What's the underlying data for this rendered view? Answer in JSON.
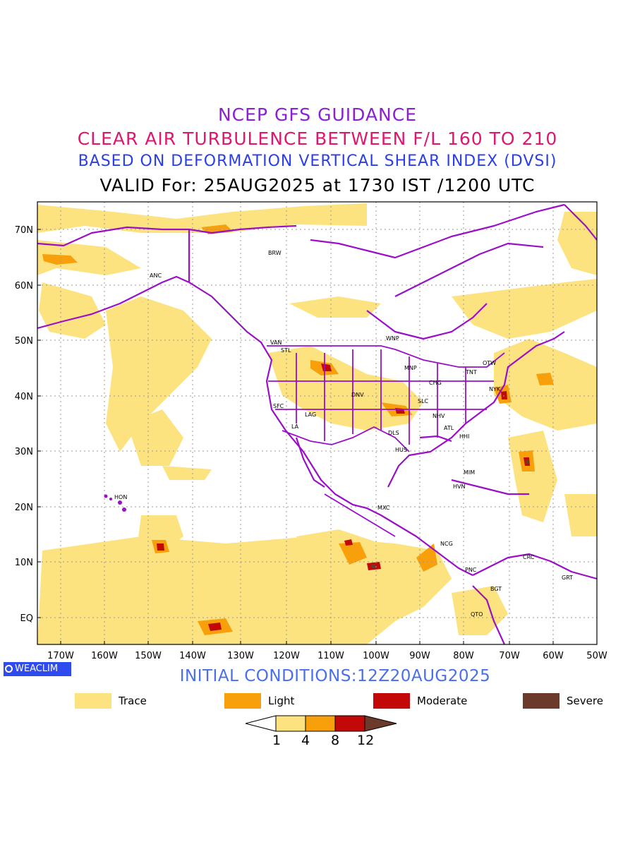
{
  "header": {
    "title": "NCEP GFS GUIDANCE",
    "subtitle": "CLEAR AIR TURBULENCE BETWEEN F/L 160 TO 210",
    "basis": "BASED ON DEFORMATION VERTICAL SHEAR INDEX (DVSI)",
    "valid": "VALID For: 25AUG2025 at 1730 IST /1200 UTC"
  },
  "map": {
    "lat_labels": [
      "70N",
      "60N",
      "50N",
      "40N",
      "30N",
      "20N",
      "10N",
      "EQ"
    ],
    "lon_labels": [
      "170W",
      "160W",
      "150W",
      "140W",
      "130W",
      "120W",
      "110W",
      "100W",
      "90W",
      "80W",
      "70W",
      "60W",
      "50W"
    ],
    "stations": [
      "BRW",
      "ANC",
      "VAN",
      "STL",
      "WNP",
      "MNP",
      "OTW",
      "TNT",
      "NYK",
      "CHG",
      "SLC",
      "DNV",
      "SFC",
      "LAG",
      "LA",
      "NHV",
      "ATL",
      "DLS",
      "HHI",
      "HUS",
      "MIM",
      "HVN",
      "MXC",
      "HON",
      "NCG",
      "PNC",
      "CRC",
      "GRT",
      "BGT",
      "QTO"
    ],
    "colors": {
      "border": "#9a10c8",
      "trace": "#fde37f",
      "light": "#f7a00c",
      "moderate": "#c30808",
      "severe": "#6b3a2a"
    }
  },
  "branding": {
    "logo": "WEACLIM"
  },
  "initial_conditions": "INITIAL CONDITIONS:12Z20AUG2025",
  "legend": [
    {
      "label": "Trace",
      "color": "#fde37f"
    },
    {
      "label": "Light",
      "color": "#f7a00c"
    },
    {
      "label": "Moderate",
      "color": "#c30808"
    },
    {
      "label": "Severe",
      "color": "#6b3a2a"
    }
  ],
  "colorbar": {
    "ticks": [
      "1",
      "4",
      "8",
      "12"
    ]
  }
}
